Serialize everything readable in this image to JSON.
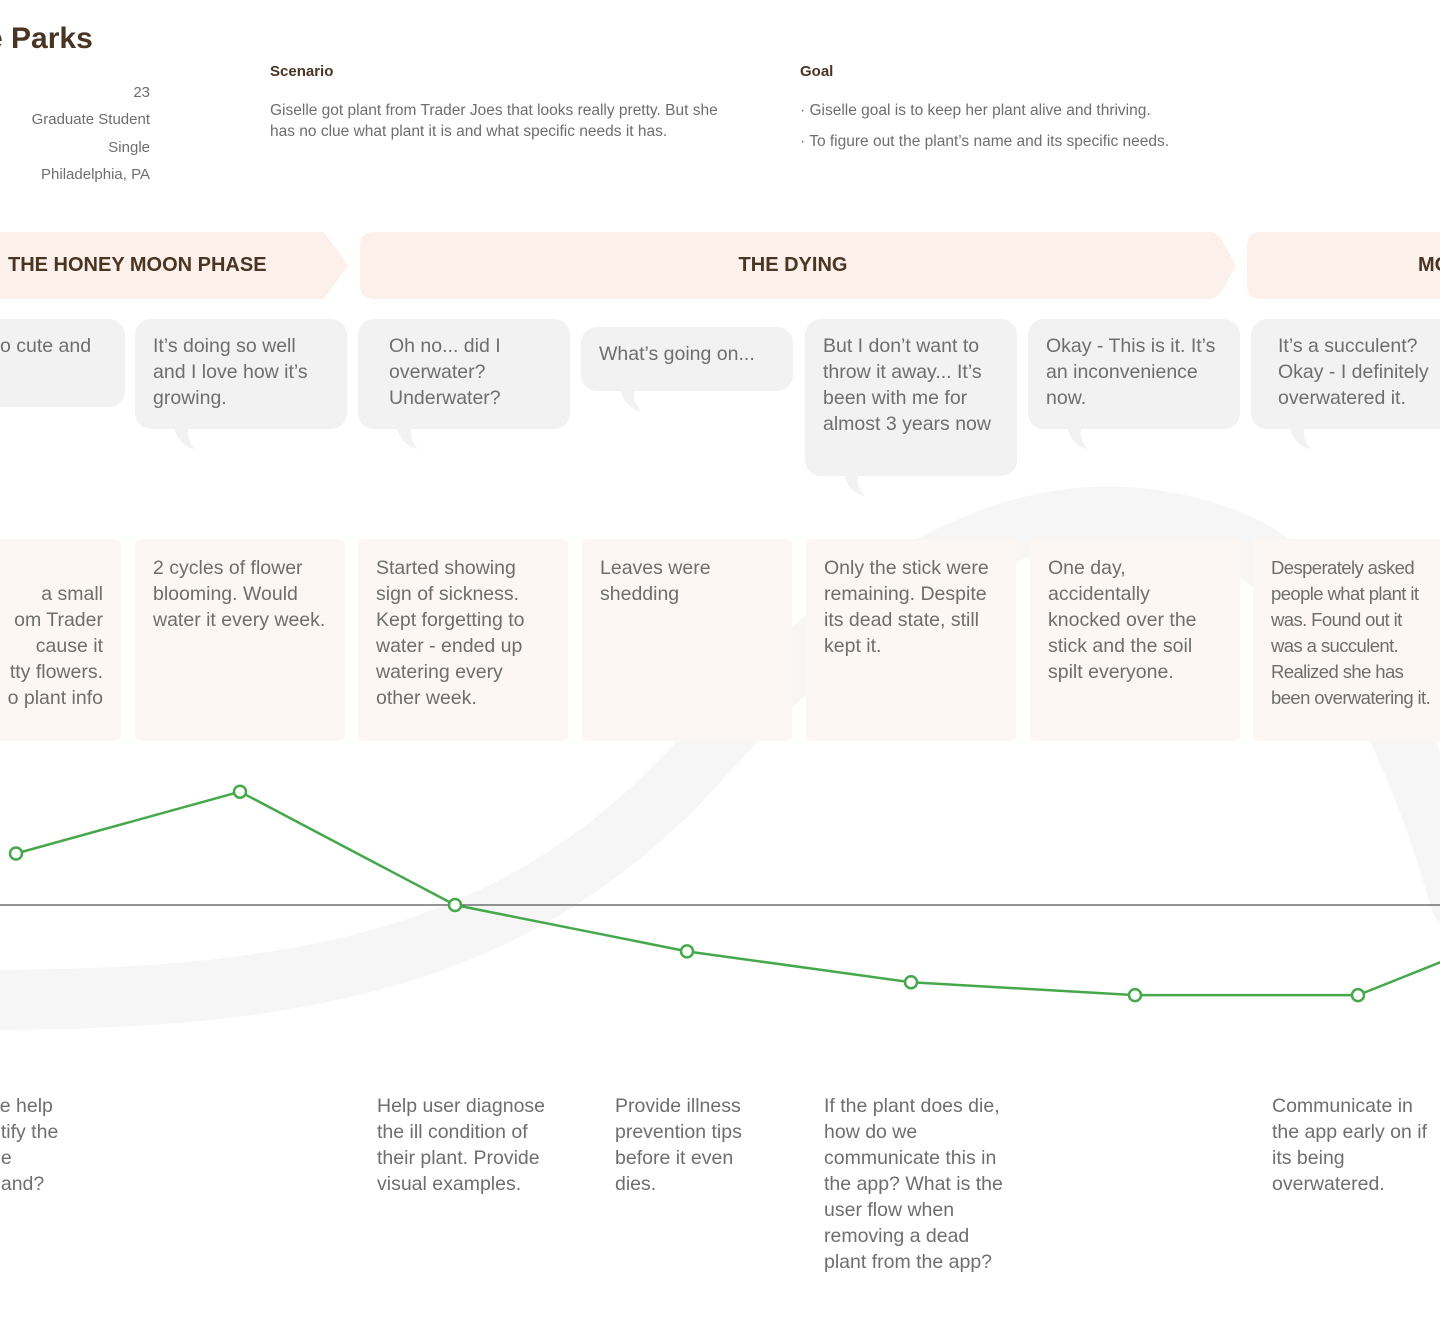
{
  "persona": {
    "name": "e Parks",
    "details": [
      "23",
      "Graduate Student",
      "Single",
      "Philadelphia, PA"
    ]
  },
  "scenario": {
    "title": "Scenario",
    "text": "Giselle got plant from Trader Joes that looks really pretty. But she has no clue what plant it is and what specific needs it has."
  },
  "goal": {
    "title": "Goal",
    "items": [
      "· Giselle goal is to keep her plant alive and thriving.",
      "· To figure out the plant’s name and its specific needs."
    ]
  },
  "phases": [
    {
      "label": "THE HONEY MOON PHASE"
    },
    {
      "label": "THE DYING"
    },
    {
      "label": "MO"
    }
  ],
  "thoughts": [
    "o cute and",
    "It’s doing so well and I love how it’s growing.",
    "Oh no... did I overwater? Underwater?",
    "What’s going on...",
    "But I don’t want to throw it away... It’s been with me for almost 3 years now",
    "Okay - This is it. It’s an inconvenience now.",
    "It’s a succulent? Okay - I definitely overwatered it."
  ],
  "actions": [
    "a small\nom Trader\ncause it\ntty flowers.\no plant info",
    "2 cycles of flower blooming. Would water it every week.",
    "Started showing sign of sickness. Kept forgetting to water - ended up watering every other week.",
    "Leaves were shedding",
    "Only the stick were remaining. Despite its dead state, still kept it.",
    "One day, accidentally knocked over the stick and the soil spilt everyone.",
    "Desperately asked people what plant it was. Found out it was a succulent. Realized she has been overwatering it."
  ],
  "opportunities": [
    "ve help\nntify the\npe\nhand?",
    "Help user diagnose the ill condition of their plant. Provide visual examples.",
    "Provide illness prevention tips before it even dies.",
    "If the plant does die, how do we communicate this in the app? What is the user flow when removing a dead plant from the app?",
    "Communicate in the app early on if its being overwatered."
  ],
  "chart_data": {
    "type": "line",
    "x": [
      1,
      2,
      3,
      4,
      5,
      6,
      7
    ],
    "values": [
      1.0,
      2.2,
      0.0,
      -0.9,
      -1.5,
      -1.75,
      -1.75
    ],
    "baseline": 0,
    "ylim": [
      -2.5,
      3
    ],
    "grid": false,
    "colors": {
      "line": "#45a84a",
      "baseline": "#555555"
    }
  },
  "colors": {
    "accent": "#45a84a",
    "heading": "#4a3424",
    "phase_bg": "#fcf1ea",
    "card_bg": "#fdf7f3",
    "bubble_bg": "#f2f2f2"
  }
}
